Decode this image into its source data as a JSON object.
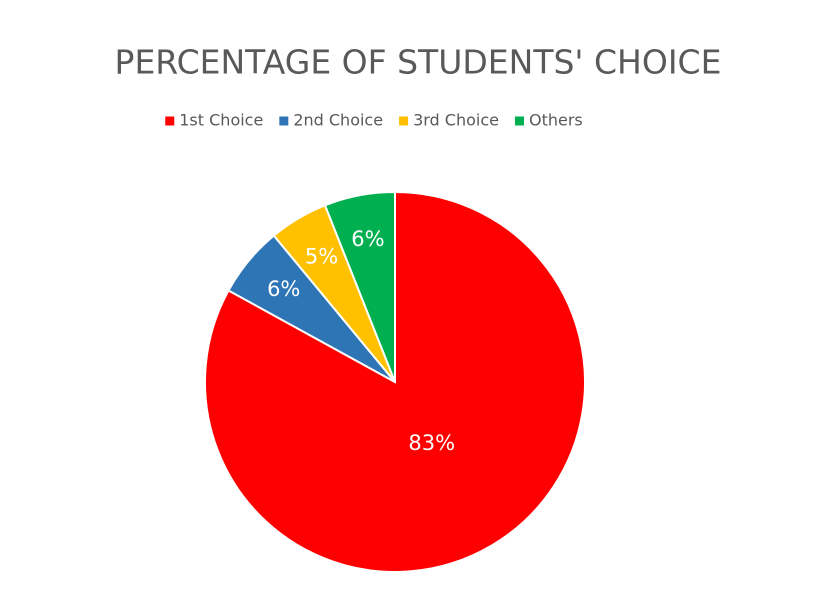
{
  "chart_data": {
    "type": "pie",
    "title": "PERCENTAGE OF STUDENTS' CHOICE",
    "categories": [
      "1st Choice",
      "2nd Choice",
      "3rd Choice",
      "Others"
    ],
    "values": [
      83,
      6,
      5,
      6
    ],
    "value_labels": [
      "83%",
      "6%",
      "5%",
      "6%"
    ],
    "colors": [
      "#ff0000",
      "#2e75b6",
      "#ffc000",
      "#00b050"
    ],
    "legend": "top"
  }
}
